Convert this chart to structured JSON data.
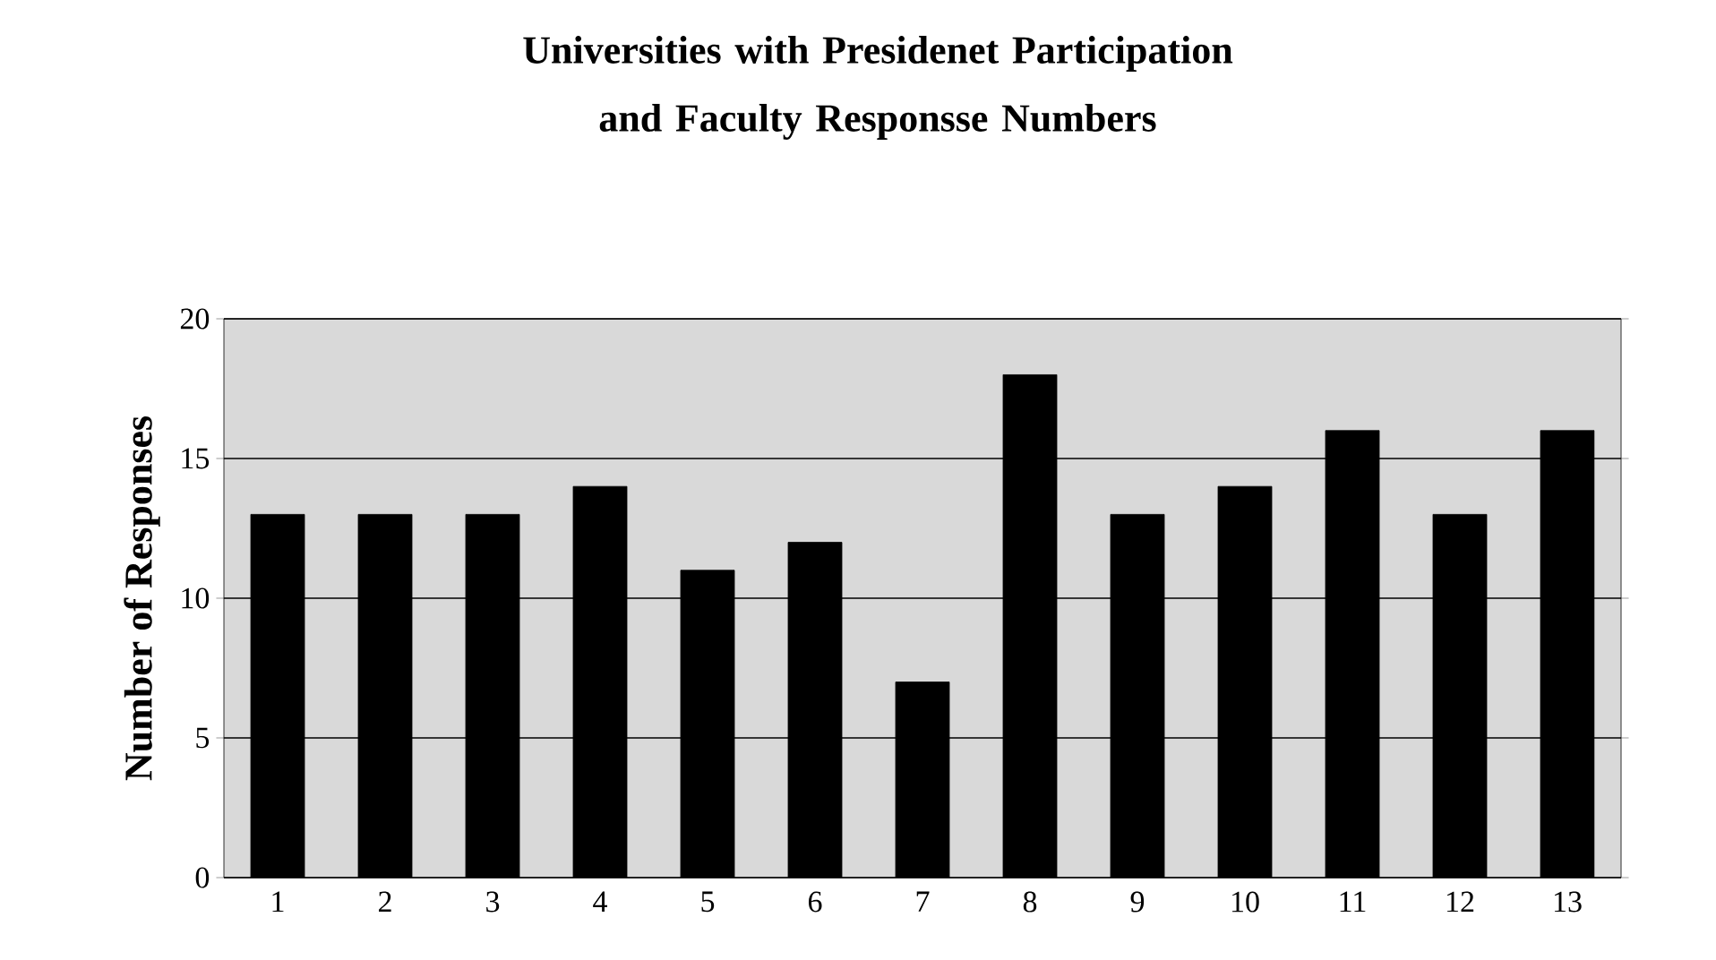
{
  "chart_data": {
    "type": "bar",
    "title": "Universities with Presidenet Participation and Faculty Responsse Numbers",
    "ylabel": "Number of Responses",
    "categories": [
      "1",
      "2",
      "3",
      "4",
      "5",
      "6",
      "7",
      "8",
      "9",
      "10",
      "11",
      "12",
      "13"
    ],
    "values": [
      13,
      13,
      13,
      14,
      11,
      12,
      7,
      18,
      13,
      14,
      16,
      13,
      16
    ],
    "color": "#000000",
    "ylim": [
      0,
      20
    ],
    "yticks": [
      0,
      5,
      10,
      15,
      20
    ],
    "grid": "y"
  }
}
